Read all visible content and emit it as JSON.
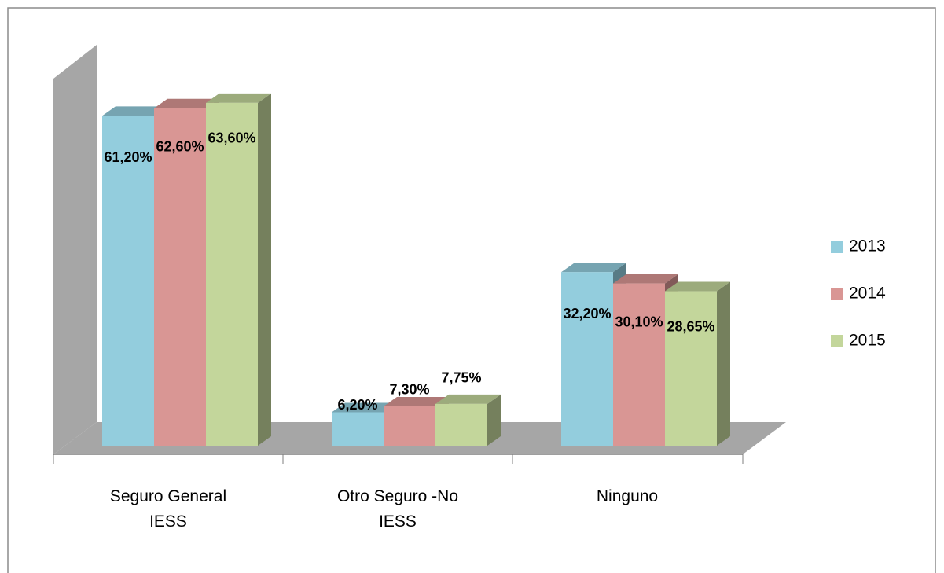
{
  "chart_data": {
    "type": "bar3d",
    "categories": [
      "Seguro General IESS",
      "Otro Seguro -No IESS",
      "Ninguno"
    ],
    "series": [
      {
        "name": "2013",
        "color": "#93cddd",
        "values": [
          61.2,
          6.2,
          32.2
        ],
        "value_labels": [
          "61,20%",
          "6,20%",
          "32,20%"
        ]
      },
      {
        "name": "2014",
        "color": "#d99694",
        "values": [
          62.6,
          7.3,
          30.1
        ],
        "value_labels": [
          "62,60%",
          "7,30%",
          "30,10%"
        ]
      },
      {
        "name": "2015",
        "color": "#c3d69b",
        "values": [
          63.6,
          7.75,
          28.65
        ],
        "value_labels": [
          "63,60%",
          "7,75%",
          "28,65%"
        ]
      }
    ],
    "ylim": [
      0,
      70
    ],
    "legend": "right"
  }
}
